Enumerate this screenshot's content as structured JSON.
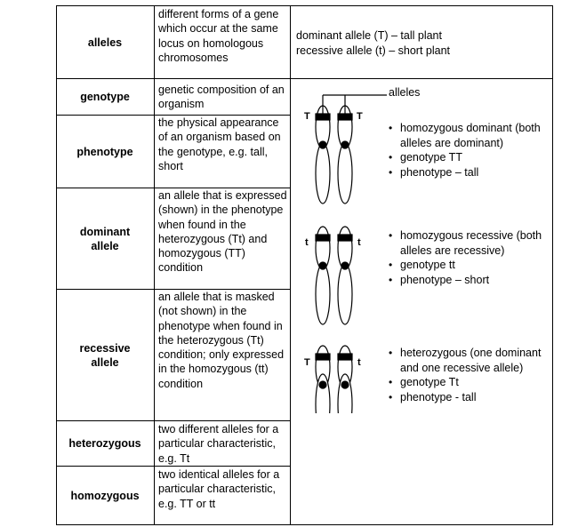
{
  "rows": [
    {
      "term": "alleles",
      "definition": "different forms of a gene which occur at the same locus on homologous chromosomes"
    },
    {
      "term": "genotype",
      "definition": "genetic composition of an organism"
    },
    {
      "term": "phenotype",
      "definition": "the physical appearance of an organism based on the genotype, e.g. tall, short"
    },
    {
      "term": "dominant allele",
      "definition": "an allele that is expressed (shown) in the phenotype when found in the heterozygous (Tt) and homozygous (TT) condition"
    },
    {
      "term": "recessive allele",
      "definition": "an allele that is masked (not shown) in the phenotype when found in the heterozygous (Tt) condition; only expressed in the homozygous (tt) condition"
    },
    {
      "term": "heterozygous",
      "definition": "two different alleles for a particular characteristic, e.g. Tt"
    },
    {
      "term": "homozygous",
      "definition": "two identical alleles for a particular characteristic, e.g. TT or tt"
    }
  ],
  "alleles_example": {
    "line1": "dominant allele (T) – tall plant",
    "line2": "recessive allele (t) – short plant"
  },
  "diagram": {
    "alleles_label": "alleles",
    "pairs": [
      {
        "left": "T",
        "right": "T",
        "bullets": [
          "homozygous dominant (both alleles are dominant)",
          "genotype TT",
          "phenotype – tall"
        ]
      },
      {
        "left": "t",
        "right": "t",
        "bullets": [
          "homozygous recessive (both alleles are recessive)",
          "genotype tt",
          "phenotype – short"
        ]
      },
      {
        "left": "T",
        "right": "t",
        "bullets": [
          "heterozygous (one dominant and one recessive allele)",
          "genotype Tt",
          "phenotype - tall"
        ]
      }
    ]
  },
  "colors": {
    "ink": "#000000",
    "background": "#ffffff"
  }
}
